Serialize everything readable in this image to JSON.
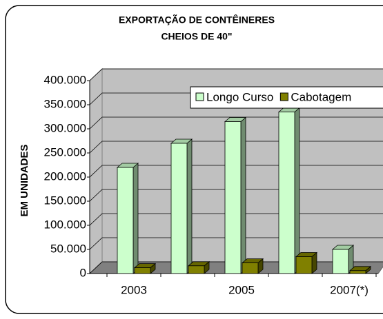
{
  "chart_data": {
    "type": "bar3d",
    "title": [
      "EXPORTAÇÃO DE CONTÊINERES",
      "CHEIOS DE 40\""
    ],
    "y_label": "EM UNIDADES",
    "categories": [
      "2003",
      null,
      "2005",
      null,
      "2007(*)"
    ],
    "series": [
      {
        "name": "Longo Curso",
        "color": "#ccffcc",
        "values": [
          220000,
          270000,
          315000,
          335000,
          50000
        ]
      },
      {
        "name": "Cabotagem",
        "color": "#808000",
        "values": [
          12000,
          16000,
          22000,
          35000,
          6000
        ]
      }
    ],
    "ylim": [
      0,
      400000
    ],
    "yticks": [
      0,
      {
        "value": 50000,
        "label": "50.000"
      },
      {
        "value": 100000,
        "label": "100.000"
      },
      {
        "value": 150000,
        "label": "150.000"
      },
      {
        "value": 200000,
        "label": "200.000"
      },
      {
        "value": 250000,
        "label": "250.000"
      },
      {
        "value": 300000,
        "label": "300.000"
      },
      {
        "value": 350000,
        "label": "350.000"
      },
      {
        "value": 400000,
        "label": "400.000"
      }
    ],
    "grid": true
  }
}
